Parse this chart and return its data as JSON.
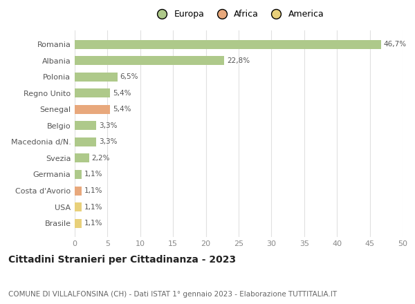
{
  "countries": [
    "Romania",
    "Albania",
    "Polonia",
    "Regno Unito",
    "Senegal",
    "Belgio",
    "Macedonia d/N.",
    "Svezia",
    "Germania",
    "Costa d'Avorio",
    "USA",
    "Brasile"
  ],
  "values": [
    46.7,
    22.8,
    6.5,
    5.4,
    5.4,
    3.3,
    3.3,
    2.2,
    1.1,
    1.1,
    1.1,
    1.1
  ],
  "labels": [
    "46,7%",
    "22,8%",
    "6,5%",
    "5,4%",
    "5,4%",
    "3,3%",
    "3,3%",
    "2,2%",
    "1,1%",
    "1,1%",
    "1,1%",
    "1,1%"
  ],
  "bar_colors": [
    "#aec98a",
    "#aec98a",
    "#aec98a",
    "#aec98a",
    "#e8a87c",
    "#aec98a",
    "#aec98a",
    "#aec98a",
    "#aec98a",
    "#e8a87c",
    "#e8d07a",
    "#e8d07a"
  ],
  "xlim": [
    0,
    50
  ],
  "xticks": [
    0,
    5,
    10,
    15,
    20,
    25,
    30,
    35,
    40,
    45,
    50
  ],
  "title": "Cittadini Stranieri per Cittadinanza - 2023",
  "subtitle": "COMUNE DI VILLALFONSINA (CH) - Dati ISTAT 1° gennaio 2023 - Elaborazione TUTTITALIA.IT",
  "legend_entries": [
    "Europa",
    "Africa",
    "America"
  ],
  "legend_colors": [
    "#aec98a",
    "#e8a87c",
    "#e8d07a"
  ],
  "bg_color": "#ffffff",
  "grid_color": "#e0e0e0",
  "title_fontsize": 10,
  "subtitle_fontsize": 7.5,
  "label_fontsize": 7.5,
  "ytick_fontsize": 8,
  "xtick_fontsize": 8,
  "legend_fontsize": 9,
  "bar_height": 0.55
}
